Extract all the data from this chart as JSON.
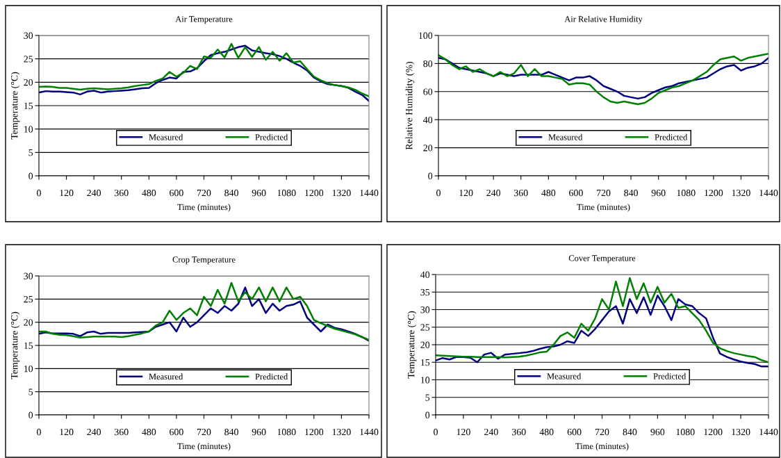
{
  "chart_data": [
    {
      "type": "line",
      "title": "Air Temperature",
      "xlabel": "Time (minutes)",
      "ylabel": "Temperature (°C)",
      "x": [
        0,
        30,
        60,
        90,
        120,
        150,
        180,
        210,
        240,
        270,
        300,
        330,
        360,
        390,
        420,
        450,
        480,
        510,
        540,
        570,
        600,
        630,
        660,
        690,
        720,
        750,
        780,
        810,
        840,
        870,
        900,
        930,
        960,
        990,
        1020,
        1050,
        1080,
        1110,
        1140,
        1170,
        1200,
        1230,
        1260,
        1290,
        1320,
        1350,
        1380,
        1410,
        1440
      ],
      "xlim": [
        0,
        1440
      ],
      "xticks": [
        0,
        120,
        240,
        360,
        480,
        600,
        720,
        840,
        960,
        1080,
        1200,
        1320,
        1440
      ],
      "ylim": [
        0,
        30
      ],
      "yticks": [
        0,
        5,
        10,
        15,
        20,
        25,
        30
      ],
      "grid": "y",
      "legend": "center",
      "marker": "none",
      "line_style": "solid",
      "series": [
        {
          "name": "Measured",
          "color": "#000080",
          "values": [
            17.8,
            18.1,
            18.0,
            18.0,
            17.9,
            17.8,
            17.4,
            18.0,
            18.2,
            17.8,
            18.0,
            18.1,
            18.2,
            18.3,
            18.5,
            18.7,
            18.8,
            19.8,
            20.5,
            21.0,
            20.8,
            22.2,
            22.3,
            23.0,
            24.5,
            25.8,
            26.2,
            26.5,
            27.0,
            27.5,
            27.8,
            26.8,
            26.5,
            26.2,
            26.0,
            25.6,
            25.0,
            24.2,
            23.5,
            22.5,
            21.0,
            20.2,
            19.6,
            19.4,
            19.2,
            18.8,
            18.0,
            17.3,
            16.0
          ]
        },
        {
          "name": "Predicted",
          "color": "#008000",
          "values": [
            19.0,
            19.1,
            19.0,
            18.8,
            18.8,
            18.6,
            18.4,
            18.6,
            18.7,
            18.6,
            18.5,
            18.6,
            18.7,
            18.9,
            19.2,
            19.4,
            19.6,
            20.3,
            20.8,
            22.2,
            21.2,
            22.0,
            23.5,
            22.8,
            25.5,
            25.2,
            27.0,
            25.3,
            28.2,
            25.2,
            27.5,
            25.4,
            27.5,
            24.8,
            26.5,
            24.6,
            26.2,
            24.2,
            24.5,
            22.8,
            21.2,
            20.4,
            19.8,
            19.4,
            19.2,
            18.9,
            18.4,
            17.6,
            17.0
          ]
        }
      ]
    },
    {
      "type": "line",
      "title": "Air Relative Humidity",
      "xlabel": "Time (minutes)",
      "ylabel": "Relative Humidity (%)",
      "x": [
        0,
        30,
        60,
        90,
        120,
        150,
        180,
        210,
        240,
        270,
        300,
        330,
        360,
        390,
        420,
        450,
        480,
        510,
        540,
        570,
        600,
        630,
        660,
        690,
        720,
        750,
        780,
        810,
        840,
        870,
        900,
        930,
        960,
        990,
        1020,
        1050,
        1080,
        1110,
        1140,
        1170,
        1200,
        1230,
        1260,
        1290,
        1320,
        1350,
        1380,
        1410,
        1440
      ],
      "xlim": [
        0,
        1440
      ],
      "xticks": [
        0,
        120,
        240,
        360,
        480,
        600,
        720,
        840,
        960,
        1080,
        1200,
        1320,
        1440
      ],
      "ylim": [
        0,
        100
      ],
      "yticks": [
        0,
        20,
        40,
        60,
        80,
        100
      ],
      "grid": "y",
      "legend": "center",
      "marker": "none",
      "line_style": "solid",
      "series": [
        {
          "name": "Measured",
          "color": "#000080",
          "values": [
            84,
            83,
            80,
            77,
            76,
            75,
            74,
            73,
            71,
            73,
            72,
            71,
            72,
            72,
            72,
            72,
            74,
            72,
            70,
            68,
            70,
            70,
            71,
            68,
            64,
            62,
            60,
            57,
            56,
            55,
            56,
            59,
            61,
            63,
            64,
            66,
            67,
            68,
            69,
            70,
            73,
            76,
            78,
            79,
            75,
            77,
            78,
            80,
            84
          ]
        },
        {
          "name": "Predicted",
          "color": "#008000",
          "values": [
            86,
            83,
            79,
            76,
            78,
            74,
            76,
            73,
            71,
            74,
            71,
            73,
            79,
            71,
            76,
            71,
            71,
            70,
            69,
            65,
            66,
            66,
            65,
            60,
            56,
            53,
            52,
            53,
            52,
            51,
            52,
            55,
            59,
            61,
            63,
            64,
            66,
            68,
            71,
            74,
            79,
            83,
            84,
            85,
            82,
            84,
            85,
            86,
            87
          ]
        }
      ]
    },
    {
      "type": "line",
      "title": "Crop Temperature",
      "xlabel": "Time (minutes)",
      "ylabel": "Temperature (°C)",
      "x": [
        0,
        30,
        60,
        90,
        120,
        150,
        180,
        210,
        240,
        270,
        300,
        330,
        360,
        390,
        420,
        450,
        480,
        510,
        540,
        570,
        600,
        630,
        660,
        690,
        720,
        750,
        780,
        810,
        840,
        870,
        900,
        930,
        960,
        990,
        1020,
        1050,
        1080,
        1110,
        1140,
        1170,
        1200,
        1230,
        1260,
        1290,
        1320,
        1350,
        1380,
        1410,
        1440
      ],
      "xlim": [
        0,
        1440
      ],
      "xticks": [
        0,
        120,
        240,
        360,
        480,
        600,
        720,
        840,
        960,
        1080,
        1200,
        1320,
        1440
      ],
      "ylim": [
        0,
        30
      ],
      "yticks": [
        0,
        5,
        10,
        15,
        20,
        25,
        30
      ],
      "grid": "y",
      "legend": "center",
      "marker": "none",
      "line_style": "solid",
      "series": [
        {
          "name": "Measured",
          "color": "#000080",
          "values": [
            17.5,
            17.8,
            17.6,
            17.6,
            17.6,
            17.5,
            17.0,
            17.8,
            18.0,
            17.5,
            17.7,
            17.7,
            17.7,
            17.7,
            17.8,
            17.9,
            18.0,
            19.0,
            19.5,
            20.0,
            18.0,
            21.0,
            19.0,
            20.0,
            21.5,
            23.0,
            22.0,
            23.5,
            22.5,
            24.0,
            27.5,
            23.5,
            25.0,
            22.0,
            24.0,
            22.5,
            23.5,
            23.8,
            24.5,
            21.0,
            19.5,
            18.0,
            19.5,
            18.8,
            18.5,
            18.0,
            17.5,
            16.8,
            16.0
          ]
        },
        {
          "name": "Predicted",
          "color": "#008000",
          "values": [
            18.0,
            18.0,
            17.5,
            17.3,
            17.2,
            17.0,
            16.7,
            16.8,
            16.9,
            16.9,
            16.9,
            16.9,
            16.8,
            17.0,
            17.3,
            17.6,
            18.0,
            19.3,
            20.0,
            22.5,
            20.5,
            22.0,
            23.0,
            21.5,
            25.5,
            23.5,
            27.0,
            24.0,
            28.5,
            24.5,
            26.5,
            25.0,
            27.5,
            24.5,
            27.5,
            24.5,
            27.5,
            25.0,
            25.5,
            23.5,
            20.5,
            19.8,
            19.2,
            18.6,
            18.2,
            17.8,
            17.4,
            16.8,
            16.2
          ]
        }
      ]
    },
    {
      "type": "line",
      "title": "Cover Temperature",
      "xlabel": "Time (minutes)",
      "ylabel": "Temperature (°C)",
      "x": [
        0,
        30,
        60,
        90,
        120,
        150,
        180,
        210,
        240,
        270,
        300,
        330,
        360,
        390,
        420,
        450,
        480,
        510,
        540,
        570,
        600,
        630,
        660,
        690,
        720,
        750,
        780,
        810,
        840,
        870,
        900,
        930,
        960,
        990,
        1020,
        1050,
        1080,
        1110,
        1140,
        1170,
        1200,
        1230,
        1260,
        1290,
        1320,
        1350,
        1380,
        1410,
        1440
      ],
      "xlim": [
        0,
        1440
      ],
      "xticks": [
        0,
        120,
        240,
        360,
        480,
        600,
        720,
        840,
        960,
        1080,
        1200,
        1320,
        1440
      ],
      "ylim": [
        0,
        40
      ],
      "yticks": [
        0,
        5,
        10,
        15,
        20,
        25,
        30,
        35,
        40
      ],
      "grid": "y",
      "legend": "center",
      "marker": "none",
      "line_style": "solid",
      "series": [
        {
          "name": "Measured",
          "color": "#000080",
          "values": [
            15.5,
            16.2,
            15.8,
            16.5,
            16.5,
            16.3,
            15.0,
            17.2,
            17.7,
            16.0,
            17.2,
            17.4,
            17.6,
            17.8,
            18.2,
            18.8,
            19.3,
            19.5,
            20.0,
            21.0,
            20.5,
            24.0,
            22.5,
            24.5,
            27.0,
            29.5,
            31.0,
            26.0,
            33.0,
            29.0,
            33.5,
            28.5,
            34.0,
            31.0,
            27.0,
            33.0,
            31.5,
            31.0,
            29.0,
            27.5,
            22.0,
            17.5,
            16.5,
            15.8,
            15.2,
            14.8,
            14.5,
            13.8,
            13.8
          ]
        },
        {
          "name": "Predicted",
          "color": "#008000",
          "values": [
            17.0,
            16.9,
            16.8,
            16.7,
            16.6,
            16.6,
            16.5,
            16.5,
            16.5,
            16.5,
            16.4,
            16.5,
            16.6,
            16.9,
            17.3,
            17.8,
            18.0,
            20.0,
            22.5,
            23.5,
            22.0,
            26.0,
            24.0,
            27.5,
            33.0,
            30.0,
            38.0,
            31.0,
            39.0,
            33.0,
            37.5,
            32.0,
            36.5,
            32.0,
            34.5,
            30.5,
            31.0,
            29.0,
            27.0,
            24.0,
            20.5,
            19.0,
            18.2,
            17.6,
            17.2,
            16.8,
            16.5,
            15.6,
            15.0
          ]
        }
      ]
    }
  ]
}
